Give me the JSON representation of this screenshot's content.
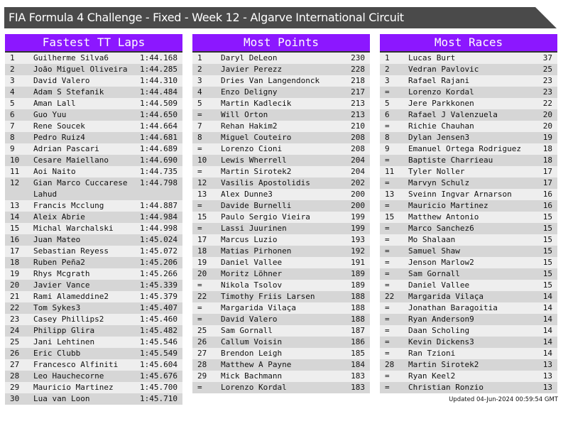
{
  "title": "FIA Formula 4 Challenge - Fixed - Week 12 - Algarve International Circuit",
  "updated": "Updated 04-Jun-2024 00:59:54 GMT",
  "colors": {
    "header": "#8c17ff",
    "banner": "#4a4a4a",
    "row_light": "#eeeeee",
    "row_dark": "#d6d6d6"
  },
  "panels": [
    {
      "title": "Fastest TT Laps",
      "rows": [
        [
          "1",
          "Guilherme Silva6",
          "1:44.168"
        ],
        [
          "2",
          "João Miguel Oliveira",
          "1:44.285"
        ],
        [
          "3",
          "David Valero",
          "1:44.310"
        ],
        [
          "4",
          "Adam S Stefanik",
          "1:44.484"
        ],
        [
          "5",
          "Aman Lall",
          "1:44.509"
        ],
        [
          "6",
          "Guo Yuu",
          "1:44.650"
        ],
        [
          "7",
          "Rene Soucek",
          "1:44.664"
        ],
        [
          "8",
          "Pedro Ruiz4",
          "1:44.681"
        ],
        [
          "9",
          "Adrian Pascari",
          "1:44.689"
        ],
        [
          "10",
          "Cesare Maiellano",
          "1:44.690"
        ],
        [
          "11",
          "Aoi Naito",
          "1:44.735"
        ],
        [
          "12",
          "Gian Marco Cuccarese Lahud",
          "1:44.798"
        ],
        [
          "13",
          "Francis Mcclung",
          "1:44.887"
        ],
        [
          "14",
          "Aleix Abrie",
          "1:44.984"
        ],
        [
          "15",
          "Michal Warchalski",
          "1:44.998"
        ],
        [
          "16",
          "Juan Mateo",
          "1:45.024"
        ],
        [
          "17",
          "Sebastian Reyess",
          "1:45.072"
        ],
        [
          "18",
          "Ruben Peña2",
          "1:45.206"
        ],
        [
          "19",
          "Rhys Mcgrath",
          "1:45.266"
        ],
        [
          "20",
          "Javier Vance",
          "1:45.339"
        ],
        [
          "21",
          "Rami Alameddine2",
          "1:45.379"
        ],
        [
          "22",
          "Tom Sykes3",
          "1:45.407"
        ],
        [
          "23",
          "Casey Phillips2",
          "1:45.460"
        ],
        [
          "24",
          "Philipp Glira",
          "1:45.482"
        ],
        [
          "25",
          "Jani Lehtinen",
          "1:45.546"
        ],
        [
          "26",
          "Eric Clubb",
          "1:45.549"
        ],
        [
          "27",
          "Francesco Alfiniti",
          "1:45.604"
        ],
        [
          "28",
          "Leo Hauchecorne",
          "1:45.676"
        ],
        [
          "29",
          "Mauricio Martinez",
          "1:45.700"
        ],
        [
          "30",
          "Lua van Loon",
          "1:45.710"
        ]
      ]
    },
    {
      "title": "Most Points",
      "rows": [
        [
          "1",
          "Daryl DeLeon",
          "230"
        ],
        [
          "2",
          "Javier Perezz",
          "228"
        ],
        [
          "3",
          "Dries Van Langendonck",
          "218"
        ],
        [
          "4",
          "Enzo Deligny",
          "217"
        ],
        [
          "5",
          "Martin Kadlecik",
          "213"
        ],
        [
          "=",
          "Will Orton",
          "213"
        ],
        [
          "7",
          "Rehan Hakim2",
          "210"
        ],
        [
          "8",
          "Miguel Couteiro",
          "208"
        ],
        [
          "=",
          "Lorenzo Cioni",
          "208"
        ],
        [
          "10",
          "Lewis Wherrell",
          "204"
        ],
        [
          "=",
          "Martin Sirotek2",
          "204"
        ],
        [
          "12",
          "Vasilis Apostolidis",
          "202"
        ],
        [
          "13",
          "Alex Dunne3",
          "200"
        ],
        [
          "=",
          "Davide Burnelli",
          "200"
        ],
        [
          "15",
          "Paulo Sergio Vieira",
          "199"
        ],
        [
          "=",
          "Lassi Juurinen",
          "199"
        ],
        [
          "17",
          "Marcus Luzio",
          "193"
        ],
        [
          "18",
          "Matias Pirhonen",
          "192"
        ],
        [
          "19",
          "Daniel Vallee",
          "191"
        ],
        [
          "20",
          "Moritz Löhner",
          "189"
        ],
        [
          "=",
          "Nikola Tsolov",
          "189"
        ],
        [
          "22",
          "Timothy Friis Larsen",
          "188"
        ],
        [
          "=",
          "Margarida Vilaça",
          "188"
        ],
        [
          "=",
          "David Valero",
          "188"
        ],
        [
          "25",
          "Sam Gornall",
          "187"
        ],
        [
          "26",
          "Callum Voisin",
          "186"
        ],
        [
          "27",
          "Brendon Leigh",
          "185"
        ],
        [
          "28",
          "Matthew A Payne",
          "184"
        ],
        [
          "29",
          "Mick Bachmann",
          "183"
        ],
        [
          "=",
          "Lorenzo Kordal",
          "183"
        ]
      ]
    },
    {
      "title": "Most Races",
      "rows": [
        [
          "1",
          "Lucas Burt",
          "37"
        ],
        [
          "2",
          "Vedran Pavlovic",
          "25"
        ],
        [
          "3",
          "Rafael Rajani",
          "23"
        ],
        [
          "=",
          "Lorenzo Kordal",
          "23"
        ],
        [
          "5",
          "Jere Parkkonen",
          "22"
        ],
        [
          "6",
          "Rafael J Valenzuela",
          "20"
        ],
        [
          "=",
          "Richie Chauhan",
          "20"
        ],
        [
          "8",
          "Dylan Jensen3",
          "19"
        ],
        [
          "9",
          "Emanuel Ortega Rodriguez",
          "18"
        ],
        [
          "=",
          "Baptiste Charrieau",
          "18"
        ],
        [
          "11",
          "Tyler Noller",
          "17"
        ],
        [
          "=",
          "Marvyn Schulz",
          "17"
        ],
        [
          "13",
          "Sveinn Ingvar Arnarson",
          "16"
        ],
        [
          "=",
          "Mauricio Martinez",
          "16"
        ],
        [
          "15",
          "Matthew Antonio",
          "15"
        ],
        [
          "=",
          "Marco Sanchez6",
          "15"
        ],
        [
          "=",
          "Mo Shalaan",
          "15"
        ],
        [
          "=",
          "Samuel Shaw",
          "15"
        ],
        [
          "=",
          "Jenson Marlow2",
          "15"
        ],
        [
          "=",
          "Sam Gornall",
          "15"
        ],
        [
          "=",
          "Daniel Vallee",
          "15"
        ],
        [
          "22",
          "Margarida Vilaça",
          "14"
        ],
        [
          "=",
          "Jonathan Baragoitia",
          "14"
        ],
        [
          "=",
          "Ryan Anderson9",
          "14"
        ],
        [
          "=",
          "Daan Scholing",
          "14"
        ],
        [
          "=",
          "Kevin Dickens3",
          "14"
        ],
        [
          "=",
          "Ran Tzioni",
          "14"
        ],
        [
          "28",
          "Martin Sirotek2",
          "13"
        ],
        [
          "=",
          "Ryan Keel2",
          "13"
        ],
        [
          "=",
          "Christian Ronzio",
          "13"
        ]
      ]
    }
  ]
}
